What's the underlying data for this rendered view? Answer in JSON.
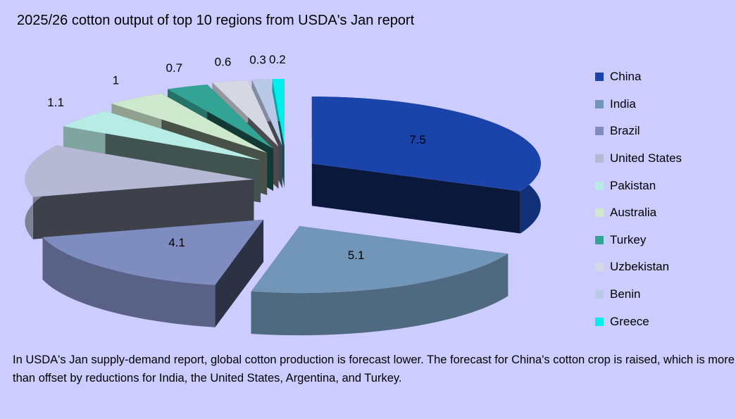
{
  "chart_data": {
    "type": "pie",
    "style": "3d-exploded",
    "title": "2025/26 cotton output of top 10 regions from USDA's Jan report",
    "categories": [
      "China",
      "India",
      "Brazil",
      "United States",
      "Pakistan",
      "Australia",
      "Turkey",
      "Uzbekistan",
      "Benin",
      "Greece"
    ],
    "values": [
      7.5,
      5.1,
      4.1,
      3,
      1.1,
      1,
      0.7,
      0.6,
      0.3,
      0.2
    ],
    "colors": [
      "#1a44aa",
      "#7196b8",
      "#7f8cbf",
      "#b5b9d4",
      "#b7ece6",
      "#cde8cc",
      "#33a395",
      "#d5d7e2",
      "#b9c9e8",
      "#00eeee"
    ],
    "legend_position": "right"
  },
  "note": "In USDA's Jan supply-demand report, global cotton production is forecast lower. The forecast for China's cotton crop is raised, which is more than offset by reductions for India, the United States, Argentina, and Turkey."
}
